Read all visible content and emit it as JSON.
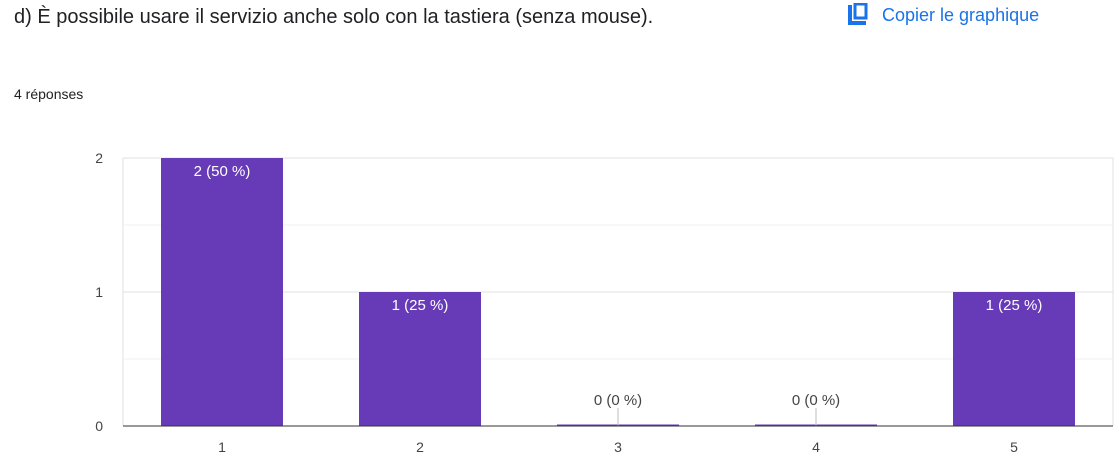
{
  "question": "d) È possibile usare il servizio anche solo con la tastiera (senza mouse).",
  "responses": "4 réponses",
  "copy_button": {
    "label": "Copier le graphique",
    "icon": "copy-icon"
  },
  "colors": {
    "bar": "#673ab7",
    "link": "#1a73e8"
  },
  "chart_data": {
    "type": "bar",
    "categories": [
      "1",
      "2",
      "3",
      "4",
      "5"
    ],
    "values": [
      2,
      1,
      0,
      0,
      1
    ],
    "labels": [
      "2 (50 %)",
      "1 (25 %)",
      "0 (0 %)",
      "0 (0 %)",
      "1 (25 %)"
    ],
    "yticks": [
      "0",
      "1",
      "2"
    ],
    "ylim": [
      0,
      2
    ],
    "grid": true,
    "title": "",
    "xlabel": "",
    "ylabel": ""
  }
}
